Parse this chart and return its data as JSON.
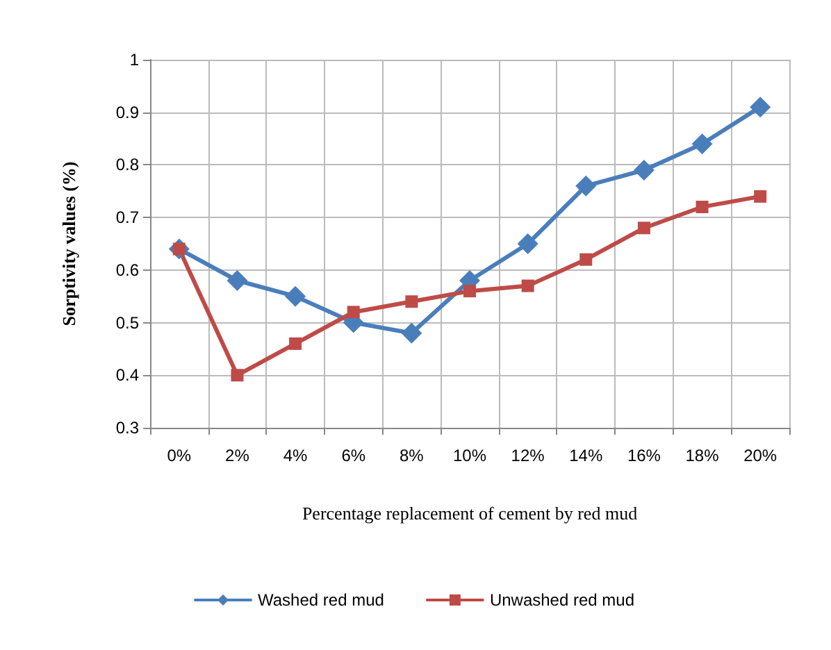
{
  "chart_data": {
    "type": "line",
    "xlabel": "Percentage replacement of cement by red mud",
    "ylabel": "Sorptivity values (%)",
    "categories": [
      "0%",
      "2%",
      "4%",
      "6%",
      "8%",
      "10%",
      "12%",
      "14%",
      "16%",
      "18%",
      "20%"
    ],
    "series": [
      {
        "name": "Washed red mud",
        "color": "#4a7ebb",
        "marker": "diamond",
        "values": [
          0.64,
          0.58,
          0.55,
          0.5,
          0.48,
          0.58,
          0.65,
          0.76,
          0.79,
          0.84,
          0.91
        ]
      },
      {
        "name": "Unwashed red mud",
        "color": "#be4b48",
        "marker": "square",
        "values": [
          0.64,
          0.4,
          0.46,
          0.52,
          0.54,
          0.56,
          0.57,
          0.62,
          0.68,
          0.72,
          0.74
        ]
      }
    ],
    "ylim": [
      0.3,
      1
    ],
    "yticks": [
      0.3,
      0.4,
      0.5,
      0.6,
      0.7,
      0.8,
      0.9,
      1
    ],
    "grid": true,
    "legend": "bottom"
  }
}
